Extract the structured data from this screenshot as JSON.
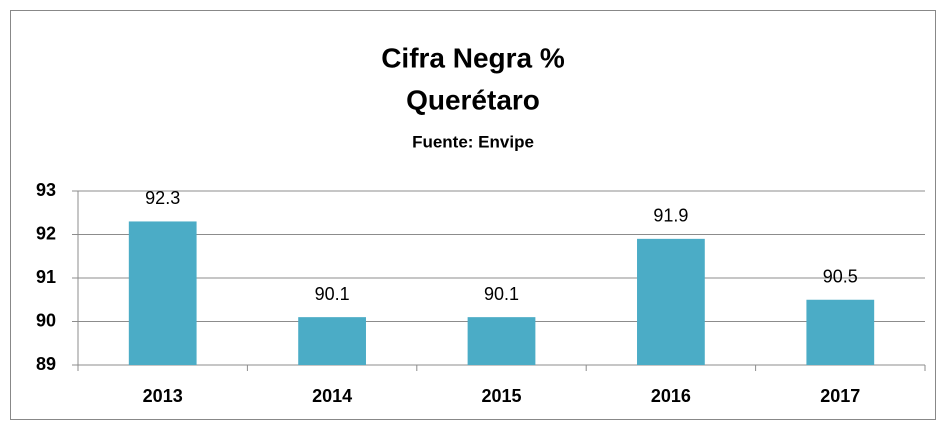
{
  "chart_data": {
    "type": "bar",
    "title_lines": [
      "Cifra Negra %",
      "Querétaro"
    ],
    "subtitle": "Fuente: Envipe",
    "categories": [
      "2013",
      "2014",
      "2015",
      "2016",
      "2017"
    ],
    "values": [
      92.3,
      90.1,
      90.1,
      91.9,
      90.5
    ],
    "color": "#4bacc6",
    "ylim": [
      89,
      93
    ],
    "yticks": [
      89,
      90,
      91,
      92,
      93
    ],
    "grid": true
  }
}
